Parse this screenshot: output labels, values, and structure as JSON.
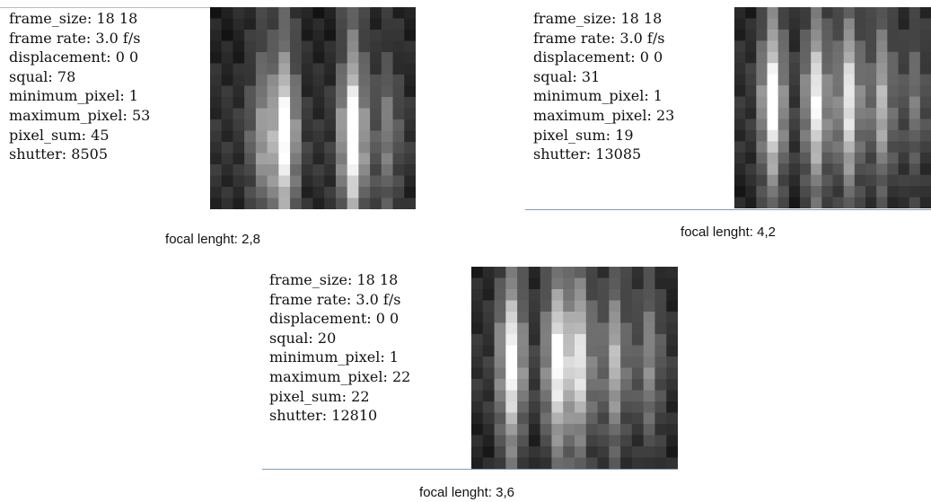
{
  "panels": [
    {
      "lines": [
        "frame_size: 18 18",
        "frame rate: 3.0 f/s",
        "displacement: 0 0",
        "squal: 78",
        "minimum_pixel: 1",
        "maximum_pixel: 53",
        "pixel_sum: 45",
        "shutter: 8505"
      ],
      "caption": "focal lenght: 2,8"
    },
    {
      "lines": [
        "frame_size: 18 18",
        "frame rate: 3.0 f/s",
        "displacement: 0 0",
        "squal: 31",
        "minimum_pixel: 1",
        "maximum_pixel: 23",
        "pixel_sum: 19",
        "shutter: 13085"
      ],
      "caption": "focal lenght: 4,2"
    },
    {
      "lines": [
        "frame_size: 18 18",
        "frame rate: 3.0 f/s",
        "displacement: 0 0",
        "squal: 20",
        "minimum_pixel: 1",
        "maximum_pixel: 22",
        "pixel_sum: 22",
        "shutter: 12810"
      ],
      "caption": "focal lenght: 3,6"
    }
  ]
}
